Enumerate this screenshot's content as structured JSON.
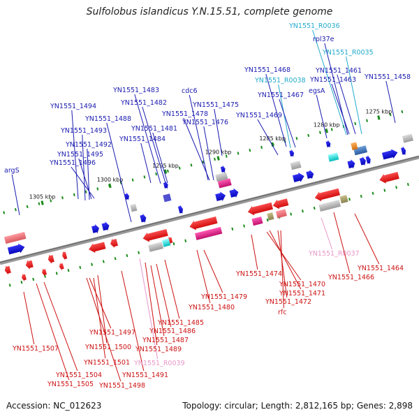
{
  "title": "Sulfolobus islandicus Y.N.15.51, complete genome",
  "footer": {
    "accession": "Accession: NC_012623",
    "summary": "Topology: circular; Length: 2,812,165 bp; Genes: 2,898"
  },
  "colors": {
    "forward_label": "#1a1ab0",
    "reverse_label": "#cc1111",
    "rna_label_upper": "#22aacc",
    "rna_label_lower": "#e896c8",
    "backbone": "#777777",
    "tick": "#1a8a1a"
  },
  "scale_ticks": [
    "1305 kbp",
    "1300 kbp",
    "1295 kbp",
    "1290 kbp",
    "1285 kbp",
    "1280 kbp",
    "1275 kbp"
  ],
  "upper_labels": [
    {
      "text": "argS",
      "type": "forward"
    },
    {
      "text": "YN1551_1494",
      "type": "forward"
    },
    {
      "text": "YN1551_1493",
      "type": "forward"
    },
    {
      "text": "YN1551_1492",
      "type": "forward"
    },
    {
      "text": "YN1551_1495",
      "type": "forward"
    },
    {
      "text": "YN1551_1496",
      "type": "forward"
    },
    {
      "text": "YN1551_1488",
      "type": "forward"
    },
    {
      "text": "YN1551_1483",
      "type": "forward"
    },
    {
      "text": "YN1551_1482",
      "type": "forward"
    },
    {
      "text": "YN1551_1481",
      "type": "forward"
    },
    {
      "text": "YN1551_1484",
      "type": "forward"
    },
    {
      "text": "cdc6",
      "type": "forward"
    },
    {
      "text": "YN1551_1478",
      "type": "forward"
    },
    {
      "text": "YN1551_1475",
      "type": "forward"
    },
    {
      "text": "YN1551_1476",
      "type": "forward"
    },
    {
      "text": "YN1551_1469",
      "type": "forward"
    },
    {
      "text": "YN1551_1468",
      "type": "forward"
    },
    {
      "text": "YN1551_R0038",
      "type": "rna"
    },
    {
      "text": "YN1551_1467",
      "type": "forward"
    },
    {
      "text": "egsA",
      "type": "forward"
    },
    {
      "text": "YN1551_R0036",
      "type": "rna"
    },
    {
      "text": "rpl37e",
      "type": "forward"
    },
    {
      "text": "YN1551_R0035",
      "type": "rna"
    },
    {
      "text": "YN1551_1461",
      "type": "forward"
    },
    {
      "text": "YN1551_1463",
      "type": "forward"
    },
    {
      "text": "YN1551_1458",
      "type": "forward"
    }
  ],
  "lower_labels": [
    {
      "text": "YN1551_1507",
      "type": "reverse"
    },
    {
      "text": "YN1551_1504",
      "type": "reverse"
    },
    {
      "text": "YN1551_1505",
      "type": "reverse"
    },
    {
      "text": "YN1551_1497",
      "type": "reverse"
    },
    {
      "text": "YN1551_1500",
      "type": "reverse"
    },
    {
      "text": "YN1551_1501",
      "type": "reverse"
    },
    {
      "text": "YN1551_1498",
      "type": "reverse"
    },
    {
      "text": "YN1551_1491",
      "type": "reverse"
    },
    {
      "text": "YN1551_R0039",
      "type": "rna"
    },
    {
      "text": "YN1551_1489",
      "type": "reverse"
    },
    {
      "text": "YN1551_1487",
      "type": "reverse"
    },
    {
      "text": "YN1551_1486",
      "type": "reverse"
    },
    {
      "text": "YN1551_1485",
      "type": "reverse"
    },
    {
      "text": "YN1551_1479",
      "type": "reverse"
    },
    {
      "text": "YN1551_1480",
      "type": "reverse"
    },
    {
      "text": "YN1551_1474",
      "type": "reverse"
    },
    {
      "text": "YN1551_1470",
      "type": "reverse"
    },
    {
      "text": "YN1551_1471",
      "type": "reverse"
    },
    {
      "text": "YN1551_1472",
      "type": "reverse"
    },
    {
      "text": "rfc",
      "type": "reverse"
    },
    {
      "text": "YN1551_R0037",
      "type": "rna"
    },
    {
      "text": "YN1551_1464",
      "type": "reverse"
    },
    {
      "text": "YN1551_1466",
      "type": "reverse"
    }
  ]
}
